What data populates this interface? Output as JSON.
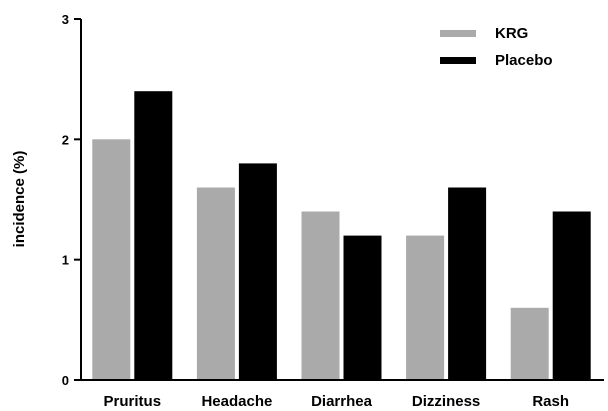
{
  "chart_data": {
    "type": "bar",
    "title": "",
    "xlabel": "",
    "ylabel": "incidence (%)",
    "ylim": [
      0,
      3
    ],
    "yticks": [
      "0",
      "1",
      "2",
      "3"
    ],
    "grid": false,
    "legend_position": "top-right",
    "categories": [
      "Pruritus",
      "Headache",
      "Diarrhea",
      "Dizziness",
      "Rash"
    ],
    "series": [
      {
        "name": "KRG",
        "color": "#aaaaaa",
        "values": [
          2.0,
          1.6,
          1.4,
          1.2,
          0.6
        ]
      },
      {
        "name": "Placebo",
        "color": "#000000",
        "values": [
          2.4,
          1.8,
          1.2,
          1.6,
          1.4
        ]
      }
    ]
  }
}
